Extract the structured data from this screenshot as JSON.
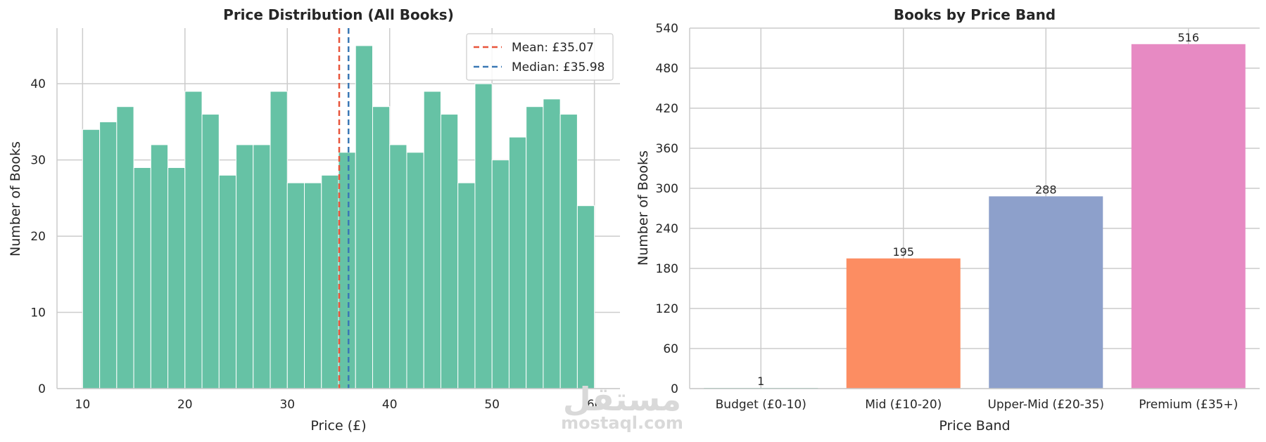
{
  "chart_data": [
    {
      "type": "bar",
      "subtype": "histogram",
      "title": "Price Distribution (All Books)",
      "xlabel": "Price (£)",
      "ylabel": "Number of Books",
      "xlim": [
        7.5,
        62.5
      ],
      "ylim": [
        0,
        47.3
      ],
      "xticks": [
        10,
        20,
        30,
        40,
        50,
        60
      ],
      "yticks": [
        0,
        10,
        20,
        30,
        40
      ],
      "bin_start": 10,
      "bin_width": 1.6667,
      "values": [
        34,
        35,
        37,
        29,
        32,
        29,
        39,
        36,
        28,
        32,
        32,
        39,
        27,
        27,
        28,
        31,
        45,
        37,
        32,
        31,
        39,
        36,
        27,
        40,
        30,
        33,
        37,
        38,
        36,
        24
      ],
      "bar_color": "#66c2a5",
      "grid": true,
      "reference_lines": [
        {
          "label": "Mean: £35.07",
          "x": 35.07,
          "color": "#e8553b",
          "style": "dashed"
        },
        {
          "label": "Median: £35.98",
          "x": 35.98,
          "color": "#3a78b5",
          "style": "dashed"
        }
      ],
      "legend_position": "top-right"
    },
    {
      "type": "bar",
      "title": "Books by Price Band",
      "xlabel": "Price Band",
      "ylabel": "Number of Books",
      "categories": [
        "Budget (£0-10)",
        "Mid (£10-20)",
        "Upper-Mid (£20-35)",
        "Premium (£35+)"
      ],
      "values": [
        1,
        195,
        288,
        516
      ],
      "colors": [
        "#66c2a5",
        "#fc8d62",
        "#8da0cb",
        "#e78ac3"
      ],
      "ylim": [
        0,
        540
      ],
      "yticks": [
        0,
        60,
        120,
        180,
        240,
        300,
        360,
        420,
        480,
        540
      ],
      "grid": true
    }
  ],
  "watermark": {
    "arabic": "مستقل",
    "latin": "mostaql.com"
  }
}
